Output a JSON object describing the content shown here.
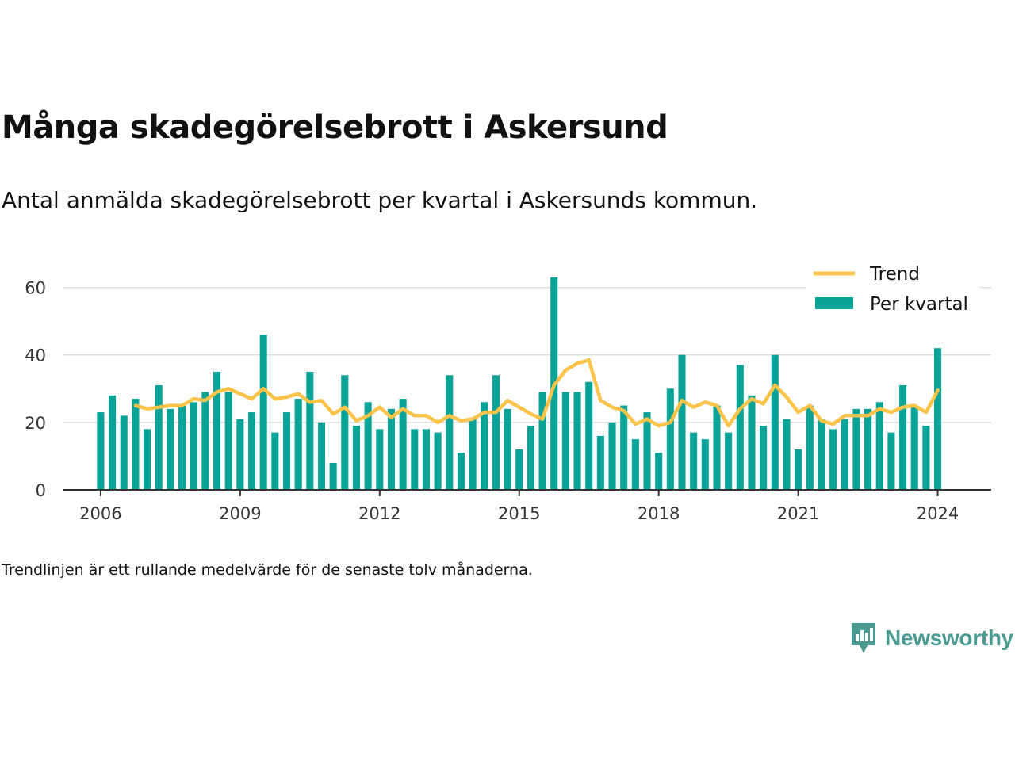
{
  "title": "Många skadegörelsebrott i Askersund",
  "subtitle": "Antal anmälda skadegörelsebrott per kvartal i Askersunds kommun.",
  "note": "Trendlinjen är ett rullande medelvärde för de senaste tolv månaderna.",
  "brand": {
    "name": "Newsworthy",
    "icon": "bar-chart-speech-bubble-icon",
    "color": "#4a9a92"
  },
  "chart_data": {
    "type": "bar",
    "title": "",
    "xlabel": "",
    "ylabel": "",
    "ylim": [
      0,
      70
    ],
    "yticks": [
      0,
      20,
      40,
      60
    ],
    "xticks": [
      "2006",
      "2009",
      "2012",
      "2015",
      "2018",
      "2021",
      "2024"
    ],
    "xticks_pos": [
      2006,
      2009,
      2012,
      2015,
      2018,
      2021,
      2024
    ],
    "grid": true,
    "legend": "top-right",
    "bar_color": "#0aa398",
    "line_color": "#fcc34a",
    "x": [
      2006.0,
      2006.25,
      2006.5,
      2006.75,
      2007.0,
      2007.25,
      2007.5,
      2007.75,
      2008.0,
      2008.25,
      2008.5,
      2008.75,
      2009.0,
      2009.25,
      2009.5,
      2009.75,
      2010.0,
      2010.25,
      2010.5,
      2010.75,
      2011.0,
      2011.25,
      2011.5,
      2011.75,
      2012.0,
      2012.25,
      2012.5,
      2012.75,
      2013.0,
      2013.25,
      2013.5,
      2013.75,
      2014.0,
      2014.25,
      2014.5,
      2014.75,
      2015.0,
      2015.25,
      2015.5,
      2015.75,
      2016.0,
      2016.25,
      2016.5,
      2016.75,
      2017.0,
      2017.25,
      2017.5,
      2017.75,
      2018.0,
      2018.25,
      2018.5,
      2018.75,
      2019.0,
      2019.25,
      2019.5,
      2019.75,
      2020.0,
      2020.25,
      2020.5,
      2020.75,
      2021.0,
      2021.25,
      2021.5,
      2021.75,
      2022.0,
      2022.25,
      2022.5,
      2022.75,
      2023.0,
      2023.25,
      2023.5,
      2023.75,
      2024.0
    ],
    "series": [
      {
        "name": "Per kvartal",
        "type": "bar",
        "values": [
          23,
          28,
          22,
          27,
          18,
          31,
          24,
          25,
          26,
          29,
          35,
          29,
          21,
          23,
          46,
          17,
          23,
          27,
          35,
          20,
          8,
          34,
          19,
          26,
          18,
          24,
          27,
          18,
          18,
          17,
          34,
          11,
          21,
          26,
          34,
          24,
          12,
          19,
          29,
          63,
          29,
          29,
          32,
          16,
          20,
          25,
          15,
          23,
          11,
          30,
          40,
          17,
          15,
          25,
          17,
          37,
          28,
          19,
          40,
          21,
          12,
          25,
          21,
          18,
          21,
          24,
          24,
          26,
          17,
          31,
          25,
          19,
          42
        ]
      },
      {
        "name": "Trend",
        "type": "line",
        "values": [
          null,
          null,
          null,
          25,
          24,
          24.5,
          25,
          25,
          27,
          26.5,
          29,
          30,
          28.5,
          27,
          30,
          27,
          27.5,
          28.5,
          26,
          26.5,
          22.5,
          24.5,
          20.5,
          22,
          24.5,
          21.5,
          24,
          22,
          22,
          20,
          22,
          20.5,
          21,
          23,
          23,
          26.5,
          24.5,
          22.5,
          21,
          31,
          35.5,
          37.5,
          38.5,
          26.5,
          24.5,
          23.5,
          19.5,
          21,
          19,
          20,
          26.5,
          24.5,
          26,
          25,
          19,
          24,
          27,
          25.5,
          31,
          27.5,
          23,
          25,
          20.5,
          19.5,
          22,
          22,
          22,
          24,
          23,
          24.5,
          25,
          23,
          29.5
        ]
      }
    ]
  }
}
